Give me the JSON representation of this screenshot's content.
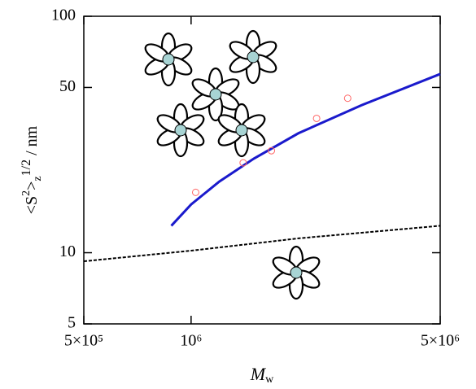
{
  "chart_data": {
    "type": "line",
    "x_label": [
      "M",
      "w"
    ],
    "y_label": [
      "<S",
      "2",
      ">",
      "z",
      "1/2",
      " / nm"
    ],
    "log_x": true,
    "log_y": true,
    "xlim": [
      500000,
      5000000
    ],
    "xticks": [
      {
        "value": 500000,
        "label": "5×10⁵"
      },
      {
        "value": 1000000,
        "label": "10⁶"
      },
      {
        "value": 5000000,
        "label": "5×10⁶"
      }
    ],
    "ylim": [
      5,
      100
    ],
    "yticks": [
      5,
      10,
      50,
      100
    ],
    "series": [
      {
        "style": "solid",
        "color": "#1a1acc",
        "x": [
          880000,
          1000000,
          1200000,
          1500000,
          2000000,
          3000000,
          5000000
        ],
        "values": [
          13,
          16,
          20,
          25,
          32,
          42,
          57
        ]
      },
      {
        "style": "dashed",
        "color": "#000000",
        "x": [
          500000,
          1000000,
          2000000,
          5000000
        ],
        "values": [
          9.2,
          10.2,
          11.5,
          13
        ]
      },
      {
        "style": "marker",
        "color": "#ff6666",
        "x": [
          1030000,
          1400000,
          1680000,
          2250000,
          2750000
        ],
        "values": [
          18,
          24,
          27,
          37,
          45
        ]
      }
    ]
  }
}
